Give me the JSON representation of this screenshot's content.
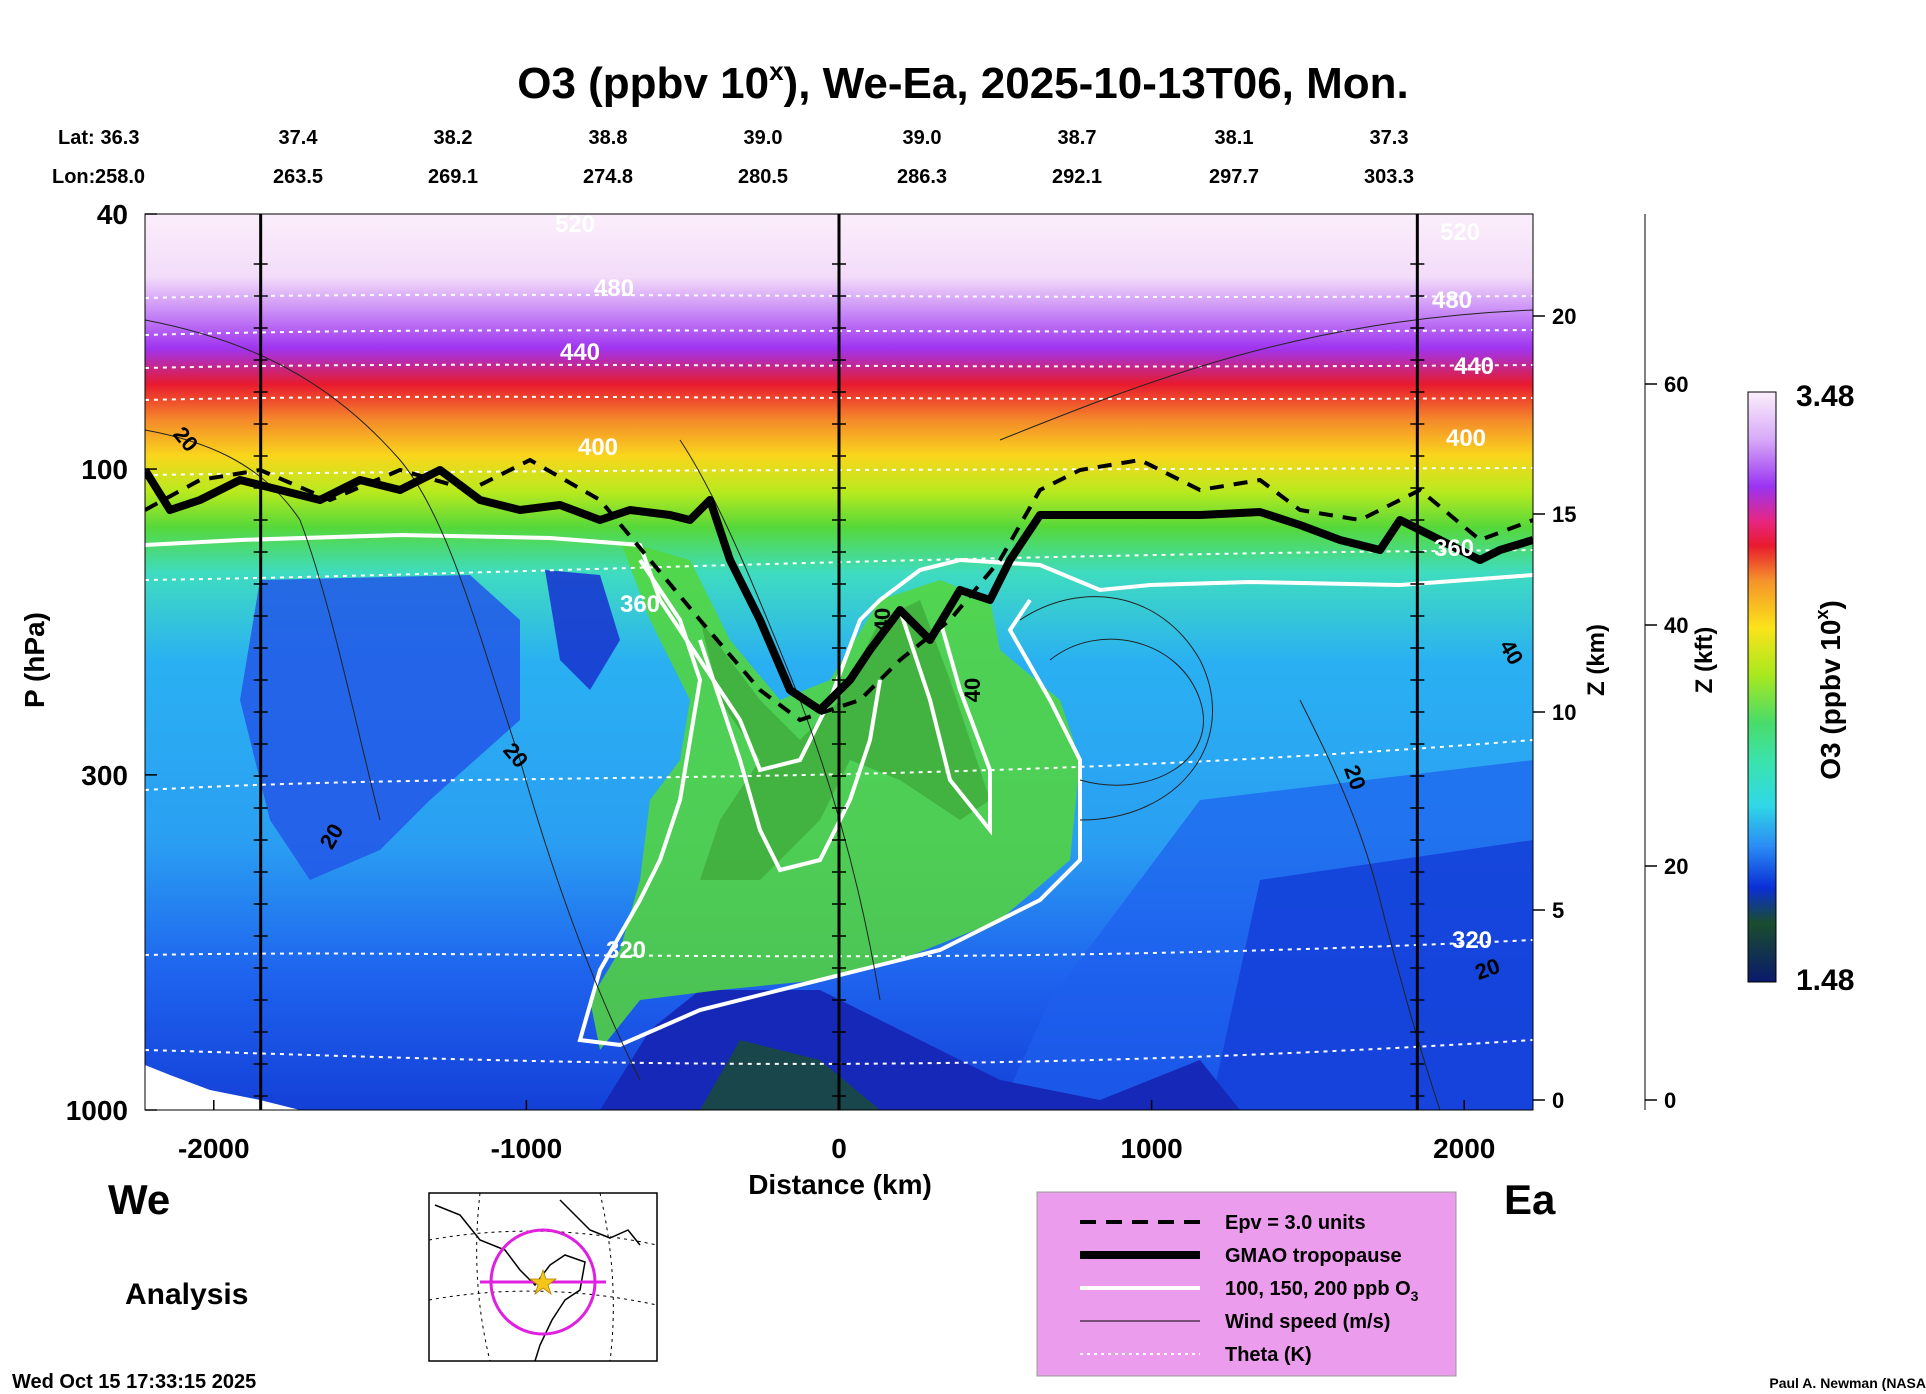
{
  "chart_data": {
    "type": "heatmap",
    "title": "O3 (ppbv 10",
    "title_sup": "x",
    "title_rest": "), We-Ea, 2025-10-13T06, Mon.",
    "lat_label": "Lat:",
    "lon_label": "Lon:",
    "lat_values": [
      "36.3",
      "37.4",
      "38.2",
      "38.8",
      "39.0",
      "39.0",
      "38.7",
      "38.1",
      "37.3"
    ],
    "lon_values": [
      "258.0",
      "263.5",
      "269.1",
      "274.8",
      "280.5",
      "286.3",
      "292.1",
      "297.7",
      "303.3"
    ],
    "xlabel": "Distance (km)",
    "ylabel": "P (hPa)",
    "z_km_label": "Z (km)",
    "z_kft_label": "Z (kft)",
    "x_ticks": [
      "-2000",
      "-1000",
      "0",
      "1000",
      "2000"
    ],
    "x_range": [
      -2220,
      2220
    ],
    "y_ticks": [
      "40",
      "100",
      "300",
      "1000"
    ],
    "y_range_hpa": [
      1000,
      40
    ],
    "z_km_ticks": [
      "20",
      "15",
      "10",
      "5",
      "0"
    ],
    "z_kft_ticks": [
      "60",
      "40",
      "20",
      "0"
    ],
    "colorbar_label": "O3 (ppbv 10",
    "colorbar_label_sup": "x",
    "colorbar_label_end": ")",
    "colorbar_max": "3.48",
    "colorbar_min": "1.48",
    "colors": [
      "#0a1a6b",
      "#1a4d2e",
      "#0a2fd6",
      "#1e5ef0",
      "#2a8cf5",
      "#27b8f2",
      "#30d8e6",
      "#3ae3b0",
      "#48dc6a",
      "#6fdd2a",
      "#a8e81e",
      "#e6f21c",
      "#fbe31a",
      "#fbbf22",
      "#f5932a",
      "#f25a24",
      "#e81a2e",
      "#e8257f",
      "#d42ad8",
      "#9a34f2",
      "#b870f6",
      "#d8aaf8",
      "#f0d8fa",
      "#fbeefb"
    ],
    "theta_labels": [
      "520",
      "480",
      "440",
      "400",
      "360",
      "320"
    ],
    "wind_labels": [
      "20",
      "40"
    ],
    "vertical_lines_km": [
      -1850,
      0,
      1850
    ],
    "left_label": "We",
    "right_label": "Ea",
    "sub_label": "Analysis",
    "legend": [
      {
        "style": "dashed",
        "label": "Epv = 3.0 units"
      },
      {
        "style": "thick",
        "label": "GMAO tropopause"
      },
      {
        "style": "white",
        "label": "100, 150, 200 ppb O"
      },
      {
        "style": "thin",
        "label": "Wind speed (m/s)"
      },
      {
        "style": "dotted",
        "label": "Theta (K)"
      }
    ],
    "legend_sub": "3",
    "timestamp": "Wed Oct 15 17:33:15 2025",
    "credit": "Paul A. Newman (NASA"
  }
}
